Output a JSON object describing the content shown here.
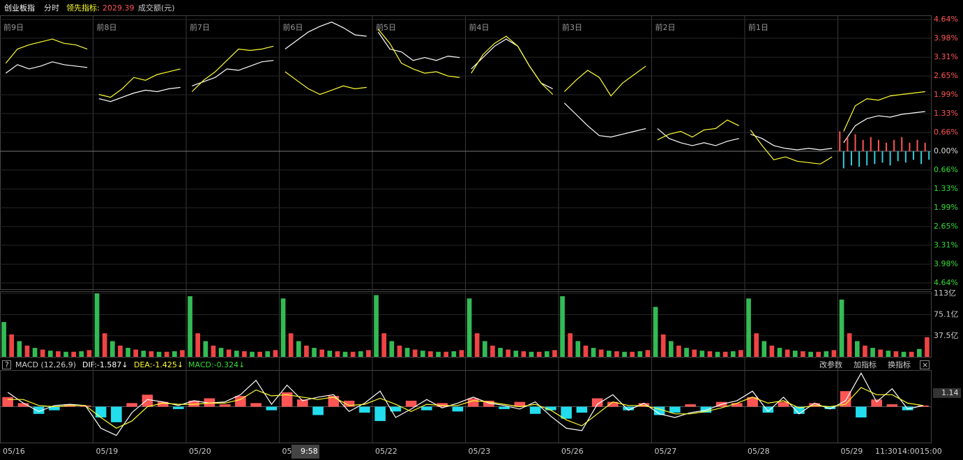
{
  "header": {
    "name": "创业板指",
    "mode": "分时",
    "indicator_label": "领先指标:",
    "indicator_value": "2029.39",
    "volume_unit": "成交额(元)"
  },
  "chart_data": [
    {
      "type": "line",
      "categories": [
        "前9日",
        "前8日",
        "前7日",
        "前6日",
        "前5日",
        "前4日",
        "前3日",
        "前2日",
        "前1日",
        null
      ],
      "ylim": [
        -4.64,
        4.64
      ],
      "yticks": [
        {
          "value": 4.64,
          "label": "4.64%"
        },
        {
          "value": 3.98,
          "label": "3.98%"
        },
        {
          "value": 3.31,
          "label": "3.31%"
        },
        {
          "value": 2.65,
          "label": "2.65%"
        },
        {
          "value": 1.99,
          "label": "1.99%"
        },
        {
          "value": 1.33,
          "label": "1.33%"
        },
        {
          "value": 0.66,
          "label": "0.66%"
        },
        {
          "value": 0,
          "label": "0.00%"
        },
        {
          "value": -0.66,
          "label": "0.66%"
        },
        {
          "value": -1.33,
          "label": "1.33%"
        },
        {
          "value": -1.99,
          "label": "1.99%"
        },
        {
          "value": -2.65,
          "label": "2.65%"
        },
        {
          "value": -3.31,
          "label": "3.31%"
        },
        {
          "value": -3.98,
          "label": "3.98%"
        },
        {
          "value": -4.64,
          "label": "4.64%"
        }
      ],
      "series": [
        {
          "color": "#ffffff",
          "values": [
            [
              2.75,
              3.05,
              2.9,
              3.0,
              3.15,
              3.05,
              3.0,
              2.95
            ],
            [
              1.85,
              1.75,
              1.9,
              2.05,
              2.15,
              2.1,
              2.2,
              2.25
            ],
            [
              2.3,
              2.45,
              2.6,
              2.9,
              2.85,
              3.0,
              3.15,
              3.2
            ],
            [
              3.6,
              3.9,
              4.2,
              4.4,
              4.55,
              4.35,
              4.1,
              4.05
            ],
            [
              4.2,
              3.6,
              3.5,
              3.2,
              3.3,
              3.2,
              3.35,
              3.3
            ],
            [
              2.9,
              3.3,
              3.7,
              3.95,
              3.7,
              3.0,
              2.4,
              2.2
            ],
            [
              1.7,
              1.3,
              0.9,
              0.55,
              0.5,
              0.6,
              0.7,
              0.8
            ],
            [
              0.8,
              0.45,
              0.3,
              0.2,
              0.3,
              0.2,
              0.35,
              0.45
            ],
            [
              0.6,
              0.45,
              0.2,
              0.1,
              0.05,
              0.1,
              0.05,
              0.1
            ],
            [
              0.3,
              0.9,
              1.15,
              1.25,
              1.2,
              1.3,
              1.35,
              1.4
            ]
          ]
        },
        {
          "color": "#ffff33",
          "values": [
            [
              3.1,
              3.6,
              3.75,
              3.85,
              3.95,
              3.8,
              3.75,
              3.6
            ],
            [
              2.0,
              1.9,
              2.2,
              2.6,
              2.5,
              2.7,
              2.8,
              2.9
            ],
            [
              2.1,
              2.5,
              2.8,
              3.2,
              3.6,
              3.55,
              3.6,
              3.7
            ],
            [
              2.8,
              2.5,
              2.2,
              2.0,
              2.15,
              2.3,
              2.2,
              2.25
            ],
            [
              4.3,
              3.8,
              3.1,
              2.9,
              2.75,
              2.8,
              2.65,
              2.6
            ],
            [
              2.75,
              3.4,
              3.8,
              4.05,
              3.7,
              3.0,
              2.4,
              2.0
            ],
            [
              2.1,
              2.5,
              2.85,
              2.6,
              1.95,
              2.4,
              2.7,
              3.0
            ],
            [
              0.4,
              0.6,
              0.7,
              0.5,
              0.75,
              0.8,
              1.1,
              0.9
            ],
            [
              0.75,
              0.2,
              -0.3,
              -0.2,
              -0.35,
              -0.4,
              -0.45,
              -0.2
            ],
            [
              0.7,
              1.6,
              1.85,
              1.8,
              1.95,
              2.0,
              2.05,
              2.1
            ]
          ]
        }
      ],
      "bars": [
        0.7,
        -0.6,
        0.5,
        -0.5,
        0.6,
        -0.55,
        0.4,
        -0.5,
        0.5,
        -0.45,
        0.4,
        -0.4,
        0.3,
        -0.5,
        0.4,
        -0.35,
        0.5,
        -0.4,
        0.3,
        -0.3,
        0.4,
        -0.45,
        0.3,
        -0.3
      ],
      "up_color": "#ff5555",
      "down_color": "#33ccdd"
    },
    {
      "type": "bar",
      "ylim": [
        0,
        113
      ],
      "yticks": [
        {
          "value": 113,
          "label": "113亿"
        },
        {
          "value": 75.1,
          "label": "75.1亿"
        },
        {
          "value": 37.5,
          "label": "37.5亿"
        }
      ],
      "values": [
        62,
        40,
        28,
        20,
        16,
        13,
        11,
        10,
        9,
        9,
        10,
        12,
        113,
        42,
        28,
        20,
        16,
        13,
        11,
        10,
        9,
        9,
        10,
        12,
        108,
        42,
        28,
        20,
        16,
        13,
        11,
        10,
        9,
        9,
        10,
        12,
        104,
        42,
        28,
        20,
        16,
        13,
        11,
        10,
        9,
        9,
        10,
        12,
        110,
        42,
        28,
        20,
        16,
        13,
        11,
        10,
        9,
        9,
        10,
        12,
        104,
        42,
        28,
        20,
        16,
        13,
        11,
        10,
        9,
        9,
        10,
        12,
        108,
        42,
        28,
        20,
        16,
        13,
        11,
        10,
        9,
        9,
        10,
        12,
        89,
        40,
        28,
        20,
        16,
        13,
        11,
        10,
        9,
        9,
        10,
        12,
        104,
        42,
        28,
        20,
        16,
        13,
        11,
        10,
        9,
        9,
        10,
        12,
        102,
        42,
        28,
        20,
        16,
        13,
        11,
        10,
        9,
        9,
        14,
        35
      ],
      "up_color": "#ee4444",
      "down_color": "#33bb55"
    },
    {
      "type": "macd",
      "title": "MACD (12,26,9)",
      "dif_label": "DIF:-1.587↓",
      "dea_label": "DEA:-1.425↓",
      "macd_label": "MACD:-0.324↓",
      "buttons": [
        "改参数",
        "加指标",
        "换指标"
      ],
      "ylim": [
        -3,
        3
      ],
      "yticks": [
        1.14
      ],
      "histogram": [
        0.8,
        0.3,
        -0.6,
        -0.3,
        0.2,
        0.1,
        -0.9,
        -1.3,
        0.3,
        1.0,
        0.4,
        -0.2,
        0.5,
        0.7,
        0.2,
        0.9,
        0.3,
        -0.3,
        1.2,
        0.6,
        -0.7,
        0.9,
        0.5,
        -0.5,
        -1.2,
        -0.4,
        0.5,
        -0.3,
        0.3,
        -0.4,
        0.7,
        0.5,
        -0.2,
        0.4,
        -0.6,
        -0.3,
        -1.0,
        -0.5,
        0.7,
        0.4,
        -0.3,
        0.3,
        -0.7,
        -0.5,
        0.2,
        -0.5,
        0.4,
        0.3,
        0.8,
        -0.5,
        0.4,
        -0.6,
        0.3,
        -0.2,
        1.3,
        -0.9,
        0.6,
        0.2,
        -0.3,
        0.1
      ],
      "series": [
        {
          "name": "DIF",
          "color": "#ffffff",
          "values": [
            1.2,
            0.3,
            -0.4,
            0.1,
            0.2,
            0.1,
            -1.8,
            -2.4,
            -0.5,
            0.6,
            0.4,
            0.1,
            0.5,
            0.3,
            0.4,
            1.0,
            2.2,
            0.2,
            1.8,
            0.5,
            0.8,
            1.0,
            -0.4,
            0.3,
            1.3,
            -0.9,
            -0.2,
            0.6,
            -0.1,
            0.3,
            0.8,
            0.3,
            0.1,
            -0.2,
            0.4,
            -0.8,
            -1.8,
            -2.0,
            0.2,
            1.0,
            -0.3,
            0.3,
            -0.6,
            -0.9,
            -0.5,
            -0.3,
            0.2,
            0.5,
            1.3,
            -0.4,
            0.8,
            -0.6,
            0.3,
            -0.2,
            0.5,
            2.8,
            0.4,
            1.5,
            -0.2,
            0.1
          ]
        },
        {
          "name": "DEA",
          "color": "#ffff33",
          "values": [
            0.6,
            0.6,
            0.1,
            0.0,
            0.1,
            0.1,
            -0.9,
            -1.8,
            -1.2,
            0.0,
            0.3,
            0.2,
            0.2,
            0.3,
            0.3,
            0.6,
            1.4,
            0.9,
            1.0,
            0.8,
            0.6,
            0.8,
            0.1,
            0.2,
            0.7,
            0.2,
            -0.4,
            0.2,
            0.1,
            0.1,
            0.5,
            0.4,
            0.2,
            0.0,
            0.2,
            -0.3,
            -1.1,
            -1.6,
            -0.6,
            0.4,
            0.1,
            0.1,
            -0.2,
            -0.6,
            -0.6,
            -0.4,
            -0.1,
            0.3,
            0.8,
            0.3,
            0.5,
            -0.1,
            0.1,
            0.0,
            0.2,
            1.6,
            1.0,
            1.0,
            0.3,
            0.1
          ]
        }
      ],
      "up_color": "#ff5555",
      "down_color": "#22ddee"
    }
  ],
  "time_axis": {
    "dates": [
      "05/16",
      "05/19",
      "05/20",
      "05/",
      "05/22",
      "05/23",
      "05/26",
      "05/27",
      "05/28",
      "05/29"
    ],
    "times": [
      "11:30",
      "14:00",
      "15:00"
    ],
    "cursor": "9:58"
  }
}
